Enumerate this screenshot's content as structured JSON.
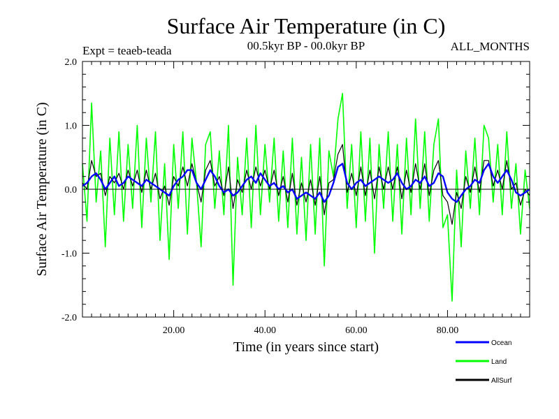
{
  "chart_data": {
    "type": "line",
    "title": "Surface Air Temperature (in C)",
    "subtitle_left": "Expt = teaeb-teada",
    "subtitle_center": "00.5kyr BP - 00.0kyr BP",
    "subtitle_right": "ALL_MONTHS",
    "xlabel": "Time (in years since start)",
    "ylabel": "Surface Air Temperature (in C)",
    "xlim": [
      0,
      98
    ],
    "ylim": [
      -2.0,
      2.0
    ],
    "xticks": [
      20,
      40,
      60,
      80
    ],
    "xtick_labels": [
      "20.00",
      "40.00",
      "60.00",
      "80.00"
    ],
    "yticks": [
      -2.0,
      -1.0,
      0.0,
      1.0,
      2.0
    ],
    "ytick_labels": [
      "-2.0",
      "-1.0",
      "0.0",
      "1.0",
      "2.0"
    ],
    "zero_line": 0.0,
    "series": [
      {
        "name": "Ocean",
        "color": "#0000ff",
        "x": [
          0,
          1,
          2,
          3,
          4,
          5,
          6,
          7,
          8,
          9,
          10,
          11,
          12,
          13,
          14,
          15,
          16,
          17,
          18,
          19,
          20,
          21,
          22,
          23,
          24,
          25,
          26,
          27,
          28,
          29,
          30,
          31,
          32,
          33,
          34,
          35,
          36,
          37,
          38,
          39,
          40,
          41,
          42,
          43,
          44,
          45,
          46,
          47,
          48,
          49,
          50,
          51,
          52,
          53,
          54,
          55,
          56,
          57,
          58,
          59,
          60,
          61,
          62,
          63,
          64,
          65,
          66,
          67,
          68,
          69,
          70,
          71,
          72,
          73,
          74,
          75,
          76,
          77,
          78,
          79,
          80,
          81,
          82,
          83,
          84,
          85,
          86,
          87,
          88,
          89,
          90,
          91,
          92,
          93,
          94,
          95,
          96,
          97,
          98
        ],
        "values": [
          0.05,
          0.1,
          0.2,
          0.25,
          0.15,
          0.0,
          0.1,
          0.2,
          0.05,
          0.1,
          0.2,
          0.15,
          0.1,
          0.05,
          0.15,
          0.1,
          0.05,
          0.0,
          -0.05,
          -0.1,
          0.05,
          0.15,
          0.2,
          0.3,
          0.3,
          0.1,
          0.0,
          0.15,
          0.3,
          0.2,
          0.05,
          -0.05,
          0.0,
          -0.1,
          -0.05,
          0.05,
          0.15,
          0.2,
          0.1,
          0.25,
          0.15,
          0.05,
          0.1,
          0.0,
          0.05,
          -0.05,
          0.0,
          -0.15,
          -0.1,
          -0.05,
          -0.1,
          -0.15,
          -0.05,
          -0.2,
          -0.1,
          0.1,
          0.35,
          0.4,
          0.1,
          0.0,
          0.1,
          0.15,
          0.05,
          0.1,
          0.15,
          0.2,
          0.15,
          0.1,
          0.15,
          0.25,
          0.1,
          0.0,
          0.05,
          0.15,
          0.1,
          0.2,
          0.05,
          0.1,
          0.25,
          0.2,
          -0.05,
          -0.15,
          -0.2,
          -0.1,
          0.0,
          0.05,
          0.15,
          0.1,
          0.3,
          0.4,
          0.2,
          0.1,
          0.2,
          0.3,
          0.15,
          -0.05,
          -0.1,
          -0.05,
          0.0
        ]
      },
      {
        "name": "Land",
        "color": "#00ff00",
        "x": [
          0,
          1,
          2,
          3,
          4,
          5,
          6,
          7,
          8,
          9,
          10,
          11,
          12,
          13,
          14,
          15,
          16,
          17,
          18,
          19,
          20,
          21,
          22,
          23,
          24,
          25,
          26,
          27,
          28,
          29,
          30,
          31,
          32,
          33,
          34,
          35,
          36,
          37,
          38,
          39,
          40,
          41,
          42,
          43,
          44,
          45,
          46,
          47,
          48,
          49,
          50,
          51,
          52,
          53,
          54,
          55,
          56,
          57,
          58,
          59,
          60,
          61,
          62,
          63,
          64,
          65,
          66,
          67,
          68,
          69,
          70,
          71,
          72,
          73,
          74,
          75,
          76,
          77,
          78,
          79,
          80,
          81,
          82,
          83,
          84,
          85,
          86,
          87,
          88,
          89,
          90,
          91,
          92,
          93,
          94,
          95,
          96,
          97,
          98
        ],
        "values": [
          0.4,
          -0.5,
          1.35,
          -0.2,
          0.6,
          -0.9,
          0.8,
          -0.4,
          0.9,
          -0.5,
          0.7,
          -0.3,
          1.0,
          -0.6,
          0.8,
          -0.2,
          0.9,
          -0.8,
          0.4,
          -1.1,
          0.7,
          -0.3,
          0.9,
          -0.7,
          0.8,
          0.1,
          -0.9,
          0.7,
          0.9,
          -0.3,
          0.6,
          -0.4,
          1.0,
          -1.5,
          0.5,
          -0.4,
          0.8,
          -0.6,
          1.0,
          -0.4,
          0.7,
          -0.2,
          0.8,
          -0.5,
          0.6,
          -0.6,
          0.8,
          -0.7,
          0.5,
          -0.8,
          0.7,
          -0.7,
          0.8,
          -1.2,
          0.6,
          0.2,
          1.1,
          1.5,
          -0.3,
          0.7,
          -0.6,
          0.9,
          -0.5,
          0.8,
          -1.0,
          0.7,
          -0.3,
          0.9,
          -0.5,
          0.7,
          -0.7,
          0.8,
          -0.4,
          1.1,
          -0.3,
          0.9,
          -0.5,
          0.7,
          1.1,
          -0.6,
          -0.4,
          -1.75,
          0.3,
          -0.9,
          0.6,
          -0.3,
          0.8,
          -0.4,
          1.0,
          0.8,
          -0.2,
          0.7,
          -0.4,
          0.9,
          -0.3,
          0.4,
          -0.7,
          0.3,
          -0.3
        ]
      },
      {
        "name": "AllSurf",
        "color": "#000000",
        "x": [
          0,
          1,
          2,
          3,
          4,
          5,
          6,
          7,
          8,
          9,
          10,
          11,
          12,
          13,
          14,
          15,
          16,
          17,
          18,
          19,
          20,
          21,
          22,
          23,
          24,
          25,
          26,
          27,
          28,
          29,
          30,
          31,
          32,
          33,
          34,
          35,
          36,
          37,
          38,
          39,
          40,
          41,
          42,
          43,
          44,
          45,
          46,
          47,
          48,
          49,
          50,
          51,
          52,
          53,
          54,
          55,
          56,
          57,
          58,
          59,
          60,
          61,
          62,
          63,
          64,
          65,
          66,
          67,
          68,
          69,
          70,
          71,
          72,
          73,
          74,
          75,
          76,
          77,
          78,
          79,
          80,
          81,
          82,
          83,
          84,
          85,
          86,
          87,
          88,
          89,
          90,
          91,
          92,
          93,
          94,
          95,
          96,
          97,
          98
        ],
        "values": [
          0.1,
          0.0,
          0.45,
          0.2,
          0.25,
          -0.1,
          0.2,
          0.1,
          0.25,
          0.0,
          0.3,
          0.05,
          0.3,
          -0.05,
          0.3,
          0.0,
          0.25,
          -0.15,
          0.05,
          -0.25,
          0.2,
          0.05,
          0.35,
          0.05,
          0.4,
          0.1,
          -0.2,
          0.3,
          0.45,
          0.05,
          0.2,
          -0.1,
          0.35,
          -0.3,
          0.15,
          -0.05,
          0.3,
          0.0,
          0.35,
          0.05,
          0.3,
          0.0,
          0.3,
          -0.1,
          0.2,
          -0.2,
          0.25,
          -0.25,
          0.1,
          -0.2,
          0.15,
          -0.25,
          0.2,
          -0.4,
          0.1,
          0.15,
          0.55,
          0.7,
          -0.05,
          0.25,
          -0.1,
          0.35,
          -0.1,
          0.3,
          -0.15,
          0.35,
          0.0,
          0.35,
          0.0,
          0.35,
          -0.15,
          0.3,
          -0.05,
          0.4,
          0.0,
          0.4,
          -0.1,
          0.3,
          0.45,
          -0.1,
          -0.2,
          -0.55,
          -0.05,
          -0.3,
          0.2,
          -0.05,
          0.35,
          -0.05,
          0.45,
          0.45,
          0.05,
          0.3,
          0.0,
          0.45,
          0.0,
          0.1,
          -0.25,
          0.0,
          -0.1
        ]
      }
    ],
    "legend": [
      {
        "label": "Ocean",
        "color": "#0000ff"
      },
      {
        "label": "Land",
        "color": "#00ff00"
      },
      {
        "label": "AllSurf",
        "color": "#000000"
      }
    ],
    "legend_position": "bottom-right",
    "grid": false
  }
}
